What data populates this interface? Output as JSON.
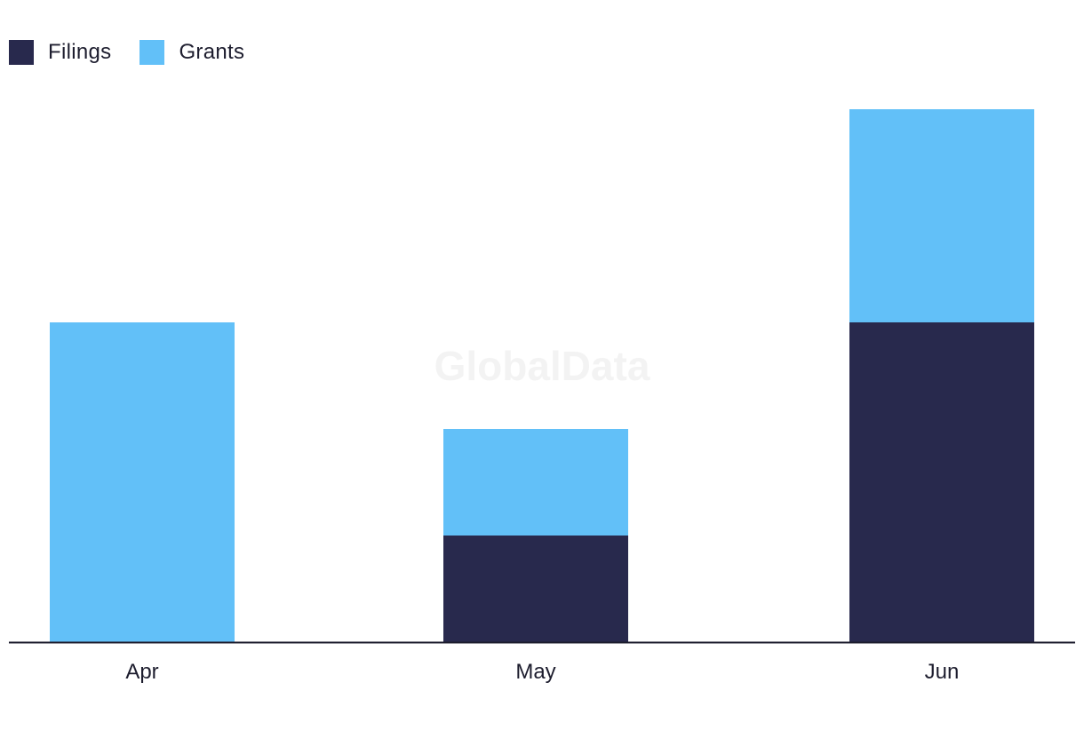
{
  "legend": {
    "items": [
      {
        "label": "Filings",
        "color": "#28294d"
      },
      {
        "label": "Grants",
        "color": "#62c0f8"
      }
    ]
  },
  "watermark": "GlobalData",
  "chart_data": {
    "type": "bar",
    "stacked": true,
    "categories": [
      "Apr",
      "May",
      "Jun"
    ],
    "series": [
      {
        "name": "Filings",
        "color": "#28294d",
        "values": [
          0,
          1,
          3
        ]
      },
      {
        "name": "Grants",
        "color": "#62c0f8",
        "values": [
          3,
          1,
          2
        ]
      }
    ],
    "title": "",
    "xlabel": "",
    "ylabel": "",
    "ylim": [
      0,
      5
    ],
    "grid": false,
    "legend_position": "top-left"
  }
}
